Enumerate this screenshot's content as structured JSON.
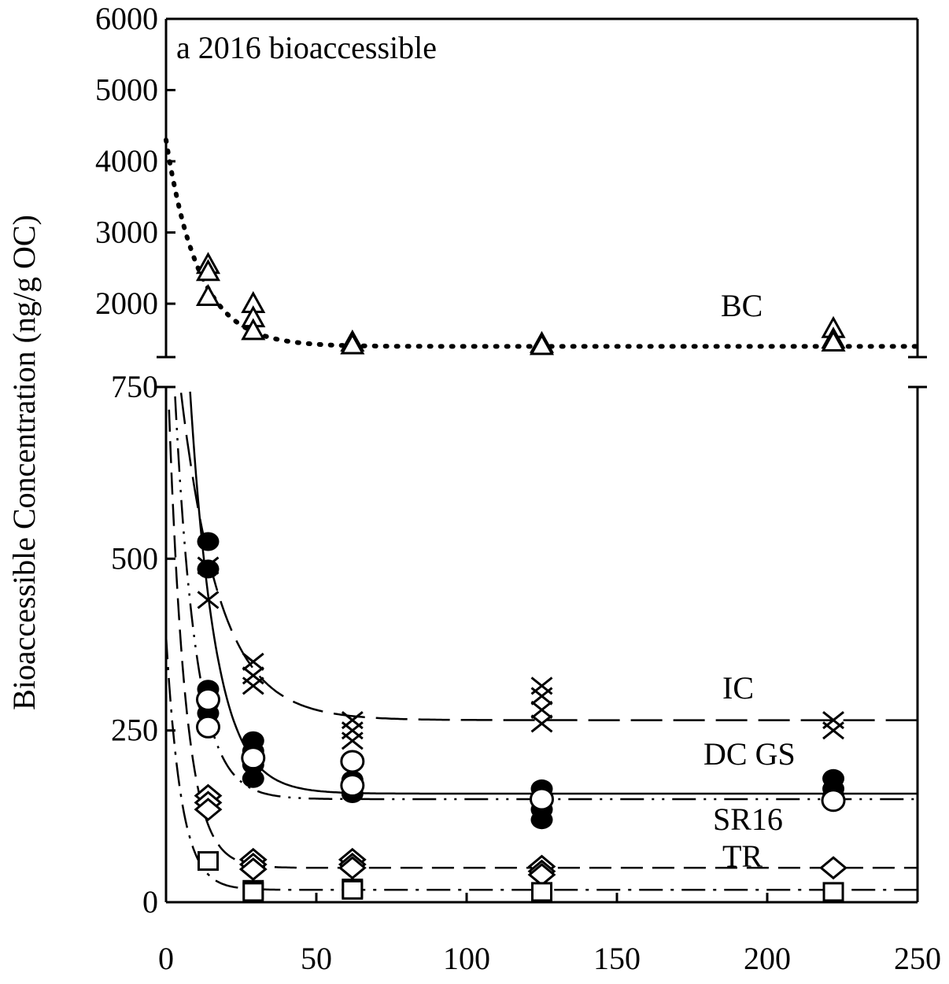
{
  "chart_data": {
    "type": "scatter",
    "title": "a 2016 bioaccessible",
    "xlabel": "",
    "ylabel": "Bioaccessible Concentration (ng/g OC)",
    "xlim": [
      0,
      250
    ],
    "x_ticks": [
      "0",
      "50",
      "100",
      "150",
      "200",
      "250"
    ],
    "upper_panel": {
      "ylim": [
        1250,
        6000
      ],
      "y_ticks": [
        "2000",
        "3000",
        "4000",
        "5000",
        "6000"
      ],
      "y_tick_values": [
        2000,
        3000,
        4000,
        5000,
        6000
      ]
    },
    "lower_panel": {
      "ylim": [
        0,
        750
      ],
      "y_ticks": [
        "0",
        "250",
        "500",
        "750"
      ],
      "y_tick_values": [
        0,
        250,
        500,
        750
      ]
    },
    "grid": false,
    "series": [
      {
        "name": "BC",
        "panel": "upper",
        "marker": "triangle-open",
        "line": "dotted",
        "fit": {
          "plateau": 1400,
          "amplitude": 2900,
          "tau": 11
        },
        "points": [
          [
            14,
            2550
          ],
          [
            14,
            2450
          ],
          [
            14,
            2100
          ],
          [
            29,
            2000
          ],
          [
            29,
            1800
          ],
          [
            29,
            1620
          ],
          [
            62,
            1460
          ],
          [
            62,
            1420
          ],
          [
            125,
            1440
          ],
          [
            125,
            1410
          ],
          [
            222,
            1650
          ],
          [
            222,
            1500
          ],
          [
            222,
            1460
          ]
        ]
      },
      {
        "name": "IC",
        "panel": "lower",
        "marker": "x",
        "line": "long-dash",
        "fit": {
          "plateau": 265,
          "amplitude": 700,
          "tau": 13
        },
        "points": [
          [
            14,
            490
          ],
          [
            14,
            440
          ],
          [
            29,
            350
          ],
          [
            29,
            330
          ],
          [
            29,
            315
          ],
          [
            62,
            265
          ],
          [
            62,
            250
          ],
          [
            62,
            235
          ],
          [
            125,
            315
          ],
          [
            125,
            300
          ],
          [
            125,
            280
          ],
          [
            125,
            260
          ],
          [
            222,
            265
          ],
          [
            222,
            250
          ]
        ]
      },
      {
        "name": "DC",
        "panel": "lower",
        "marker": "circle-filled",
        "line": "solid",
        "fit": {
          "plateau": 158,
          "amplitude": 1500,
          "tau": 8.5
        },
        "points": [
          [
            14,
            525
          ],
          [
            14,
            485
          ],
          [
            14,
            310
          ],
          [
            14,
            290
          ],
          [
            14,
            275
          ],
          [
            29,
            235
          ],
          [
            29,
            220
          ],
          [
            29,
            200
          ],
          [
            29,
            180
          ],
          [
            62,
            178
          ],
          [
            62,
            165
          ],
          [
            62,
            158
          ],
          [
            125,
            165
          ],
          [
            125,
            150
          ],
          [
            125,
            135
          ],
          [
            125,
            120
          ],
          [
            222,
            180
          ],
          [
            222,
            165
          ],
          [
            222,
            155
          ]
        ]
      },
      {
        "name": "GS",
        "panel": "lower",
        "marker": "circle-open",
        "line": "dash-dot-dot",
        "fit": {
          "plateau": 150,
          "amplitude": 900,
          "tau": 7
        },
        "points": [
          [
            14,
            295
          ],
          [
            14,
            255
          ],
          [
            29,
            210
          ],
          [
            62,
            205
          ],
          [
            62,
            170
          ],
          [
            125,
            150
          ],
          [
            222,
            148
          ]
        ]
      },
      {
        "name": "SR16",
        "panel": "lower",
        "marker": "diamond-open",
        "line": "dashed",
        "fit": {
          "plateau": 50,
          "amplitude": 800,
          "tau": 5.5
        },
        "points": [
          [
            14,
            155
          ],
          [
            14,
            145
          ],
          [
            14,
            135
          ],
          [
            29,
            62
          ],
          [
            29,
            55
          ],
          [
            29,
            48
          ],
          [
            62,
            62
          ],
          [
            62,
            55
          ],
          [
            62,
            50
          ],
          [
            125,
            52
          ],
          [
            125,
            45
          ],
          [
            125,
            40
          ],
          [
            222,
            50
          ]
        ]
      },
      {
        "name": "TR",
        "panel": "lower",
        "marker": "square-open",
        "line": "dash-dot",
        "fit": {
          "plateau": 18,
          "amplitude": 370,
          "tau": 5
        },
        "points": [
          [
            14,
            60
          ],
          [
            29,
            18
          ],
          [
            29,
            15
          ],
          [
            62,
            20
          ],
          [
            62,
            18
          ],
          [
            125,
            15
          ],
          [
            222,
            15
          ]
        ]
      }
    ],
    "annotations": [
      "BC",
      "IC",
      "DC GS",
      "SR16",
      "TR"
    ]
  }
}
